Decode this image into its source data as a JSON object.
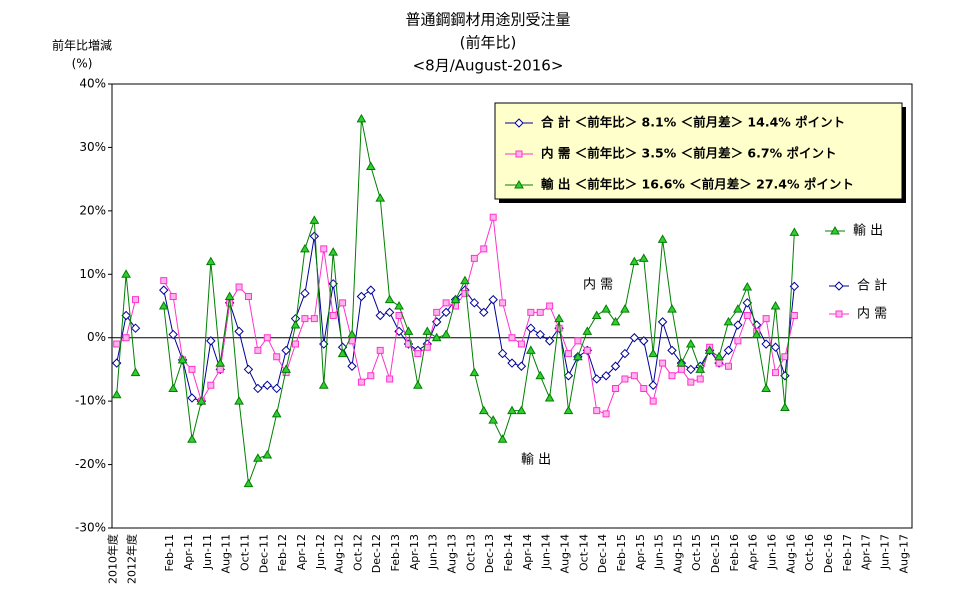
{
  "chart_data": {
    "type": "line",
    "title": "普通鋼鋼材用途別受注量",
    "subtitle": "(前年比)",
    "period": "<8月/August-2016>",
    "ylabel": "前年比増減",
    "yunit": "(%)",
    "ylim": [
      -30,
      40
    ],
    "yticks": [
      {
        "value": -30,
        "label": "-30%"
      },
      {
        "value": -20,
        "label": "-20%"
      },
      {
        "value": -10,
        "label": "-10%"
      },
      {
        "value": 0,
        "label": "0%"
      },
      {
        "value": 10,
        "label": "10%"
      },
      {
        "value": 20,
        "label": "20%"
      },
      {
        "value": 30,
        "label": "30%"
      },
      {
        "value": 40,
        "label": "40%"
      }
    ],
    "grid": false,
    "legend": "upper right",
    "categories": [
      "2010年度",
      null,
      "2012年度",
      null,
      null,
      null,
      "Feb-11",
      null,
      "Apr-11",
      null,
      "Jun-11",
      null,
      "Aug-11",
      null,
      "Oct-11",
      null,
      "Dec-11",
      null,
      "Feb-12",
      null,
      "Apr-12",
      null,
      "Jun-12",
      null,
      "Aug-12",
      null,
      "Oct-12",
      null,
      "Dec-12",
      null,
      "Feb-13",
      null,
      "Apr-13",
      null,
      "Jun-13",
      null,
      "Aug-13",
      null,
      "Oct-13",
      null,
      "Dec-13",
      null,
      "Feb-14",
      null,
      "Apr-14",
      null,
      "Jun-14",
      null,
      "Aug-14",
      null,
      "Oct-14",
      null,
      "Dec-14",
      null,
      "Feb-15",
      null,
      "Apr-15",
      null,
      "Jun-15",
      null,
      "Aug-15",
      null,
      "Oct-15",
      null,
      "Dec-15",
      null,
      "Feb-16",
      null,
      "Apr-16",
      null,
      "Jun-16",
      null,
      "Aug-16",
      null,
      "Oct-16",
      null,
      "Dec-16",
      null,
      "Feb-17",
      null,
      "Apr-17",
      null,
      "Jun-17",
      null,
      "Aug-17"
    ],
    "series": [
      {
        "name": "合 計 ＜前年比＞ 8.1% ＜前月差＞ 14.4% ポイント",
        "color": "#000099",
        "marker": "diamond",
        "values": [
          -4,
          3.5,
          1.5,
          null,
          null,
          7.5,
          0.5,
          -3.5,
          -9.5,
          -10,
          -0.5,
          -5,
          5.5,
          1,
          -5,
          -8,
          -7.5,
          -8,
          -2,
          3,
          7,
          16,
          -1,
          8.5,
          -1.5,
          -4.5,
          6.5,
          7.5,
          3.5,
          4,
          1,
          -1,
          -2,
          -1,
          2.5,
          4,
          6,
          7.5,
          5.5,
          4,
          6,
          -2.5,
          -4,
          -4.5,
          1.5,
          0.5,
          -0.5,
          1.5,
          -6,
          -3,
          -2,
          -6.5,
          -6,
          -4.5,
          -2.5,
          0,
          -0.5,
          -7.5,
          2.5,
          -2,
          -4,
          -5,
          -4.5,
          -2,
          -4,
          -2,
          2,
          5.5,
          2,
          -1,
          -1.5,
          -6,
          8.1,
          null,
          null,
          null,
          null,
          null,
          null,
          null,
          null,
          null,
          null,
          null,
          null
        ]
      },
      {
        "name": "内 需 ＜前年比＞ 3.5% ＜前月差＞ 6.7% ポイント",
        "color": "#ff33cc",
        "marker": "square",
        "values": [
          -1,
          0,
          6,
          null,
          null,
          9,
          6.5,
          -3.5,
          -5,
          -10,
          -7.5,
          -5,
          5.5,
          8,
          6.5,
          -2,
          0,
          -3,
          -5.5,
          -1,
          3,
          3,
          14,
          3.5,
          5.5,
          -0.5,
          -7,
          -6,
          -2,
          -6.5,
          3.5,
          -1,
          -2.5,
          -1.5,
          4,
          5.5,
          5,
          7,
          12.5,
          14,
          19,
          5.5,
          0,
          -1,
          4,
          4,
          5,
          1.5,
          -2.5,
          -0.5,
          -2,
          -11.5,
          -12,
          -8,
          -6.5,
          -6,
          -8,
          -10,
          -4,
          -6,
          -5,
          -7,
          -6.5,
          -1.5,
          -4,
          -4.5,
          -0.5,
          3.5,
          1,
          3,
          -5.5,
          -3,
          3.5,
          null,
          null,
          null,
          null,
          null,
          null,
          null,
          null,
          null,
          null,
          null,
          null
        ]
      },
      {
        "name": "輸 出 ＜前年比＞ 16.6% ＜前月差＞ 27.4% ポイント",
        "color": "#008000",
        "marker": "triangle",
        "values": [
          -9,
          10,
          -5.5,
          null,
          null,
          5,
          -8,
          -3.5,
          -16,
          -10,
          12,
          -4,
          6.5,
          -10,
          -23,
          -19,
          -18.5,
          -12,
          -5,
          2,
          14,
          18.5,
          -7.5,
          13.5,
          -2.5,
          0.5,
          34.5,
          27,
          22,
          6,
          5,
          1,
          -7.5,
          1,
          0,
          0.5,
          6,
          9,
          -5.5,
          -11.5,
          -13,
          -16,
          -11.5,
          -11.5,
          -2,
          -6,
          -9.5,
          3,
          -11.5,
          -3,
          1,
          3.5,
          4.5,
          2.5,
          4.5,
          12,
          12.5,
          -2.5,
          15.5,
          4.5,
          -4,
          -1,
          -5,
          -2,
          -3,
          2.5,
          4.5,
          8,
          0.5,
          -8,
          5,
          -11,
          16.6,
          null,
          null,
          null,
          null,
          null,
          null,
          null,
          null,
          null,
          null,
          null,
          null
        ]
      }
    ],
    "annotations": [
      "輸 出",
      "合 計",
      "内 需",
      "内 需",
      "輸 出"
    ]
  }
}
